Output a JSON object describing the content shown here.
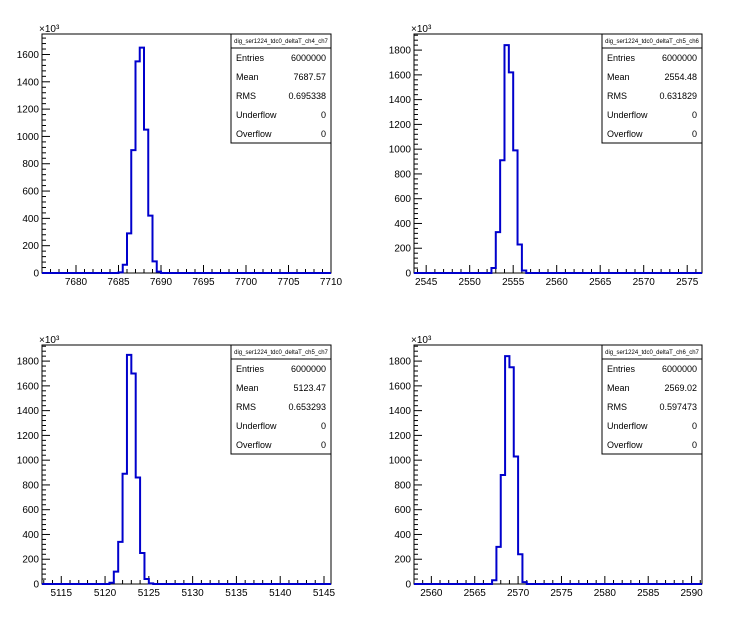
{
  "chart_data": [
    {
      "type": "histogram",
      "title": "dig_ser1224_tdc0_deltaT_ch4_ch7",
      "exponent_label": "×10³",
      "xlim": [
        7676,
        7710
      ],
      "ylim": [
        0,
        1750
      ],
      "xticks": [
        7680,
        7685,
        7690,
        7695,
        7700,
        7705,
        7710
      ],
      "yticks": [
        0,
        200,
        400,
        600,
        800,
        1000,
        1200,
        1400,
        1600
      ],
      "bin_edges": [
        7684.5,
        7685.0,
        7685.5,
        7686.0,
        7686.5,
        7687.0,
        7687.5,
        7688.0,
        7688.5,
        7689.0,
        7689.5,
        7690.0,
        7690.5
      ],
      "values": [
        0,
        5,
        60,
        290,
        900,
        1550,
        1650,
        1050,
        420,
        85,
        10,
        0
      ],
      "stats": [
        {
          "label": "Entries",
          "value": "6000000"
        },
        {
          "label": "Mean",
          "value": "7687.57"
        },
        {
          "label": "RMS",
          "value": "0.695338"
        },
        {
          "label": "Underflow",
          "value": "0"
        },
        {
          "label": "Overflow",
          "value": "0"
        }
      ]
    },
    {
      "type": "histogram",
      "title": "dig_ser1224_tdc0_deltaT_ch5_ch6",
      "exponent_label": "×10³",
      "xlim": [
        2543.6,
        2576.7
      ],
      "ylim": [
        0,
        1930
      ],
      "xticks": [
        2545,
        2550,
        2555,
        2560,
        2565,
        2570,
        2575
      ],
      "yticks": [
        0,
        200,
        400,
        600,
        800,
        1000,
        1200,
        1400,
        1600,
        1800
      ],
      "bin_edges": [
        2552.0,
        2552.5,
        2553.0,
        2553.5,
        2554.0,
        2554.5,
        2555.0,
        2555.5,
        2556.0,
        2556.5,
        2557.0
      ],
      "values": [
        0,
        40,
        330,
        910,
        1840,
        1620,
        990,
        230,
        20,
        0
      ],
      "stats": [
        {
          "label": "Entries",
          "value": "6000000"
        },
        {
          "label": "Mean",
          "value": "2554.48"
        },
        {
          "label": "RMS",
          "value": "0.631829"
        },
        {
          "label": "Underflow",
          "value": "0"
        },
        {
          "label": "Overflow",
          "value": "0"
        }
      ]
    },
    {
      "type": "histogram",
      "title": "dig_ser1224_tdc0_deltaT_ch5_ch7",
      "exponent_label": "×10³",
      "xlim": [
        5112.8,
        5145.8
      ],
      "ylim": [
        0,
        1930
      ],
      "xticks": [
        5115,
        5120,
        5125,
        5130,
        5135,
        5140,
        5145
      ],
      "yticks": [
        0,
        200,
        400,
        600,
        800,
        1000,
        1200,
        1400,
        1600,
        1800
      ],
      "bin_edges": [
        5120.0,
        5120.5,
        5121.0,
        5121.5,
        5122.0,
        5122.5,
        5123.0,
        5123.5,
        5124.0,
        5124.5,
        5125.0,
        5125.5,
        5126.0
      ],
      "values": [
        0,
        10,
        100,
        340,
        890,
        1850,
        1700,
        860,
        250,
        40,
        5,
        0
      ],
      "stats": [
        {
          "label": "Entries",
          "value": "6000000"
        },
        {
          "label": "Mean",
          "value": "5123.47"
        },
        {
          "label": "RMS",
          "value": "0.653293"
        },
        {
          "label": "Underflow",
          "value": "0"
        },
        {
          "label": "Overflow",
          "value": "0"
        }
      ]
    },
    {
      "type": "histogram",
      "title": "dig_ser1224_tdc0_deltaT_ch6_ch7",
      "exponent_label": "×10³",
      "xlim": [
        2558.0,
        2591.2
      ],
      "ylim": [
        0,
        1930
      ],
      "xticks": [
        2560,
        2565,
        2570,
        2575,
        2580,
        2585,
        2590
      ],
      "yticks": [
        0,
        200,
        400,
        600,
        800,
        1000,
        1200,
        1400,
        1600,
        1800
      ],
      "bin_edges": [
        2566.5,
        2567.0,
        2567.5,
        2568.0,
        2568.5,
        2569.0,
        2569.5,
        2570.0,
        2570.5,
        2571.0,
        2571.5
      ],
      "values": [
        0,
        30,
        300,
        880,
        1840,
        1750,
        1030,
        240,
        15,
        0
      ],
      "stats": [
        {
          "label": "Entries",
          "value": "6000000"
        },
        {
          "label": "Mean",
          "value": "2569.02"
        },
        {
          "label": "RMS",
          "value": "0.597473"
        },
        {
          "label": "Underflow",
          "value": "0"
        },
        {
          "label": "Overflow",
          "value": "0"
        }
      ]
    }
  ],
  "colors": {
    "histogram_line": "#0000cc",
    "axis": "#000000",
    "background": "#ffffff"
  }
}
